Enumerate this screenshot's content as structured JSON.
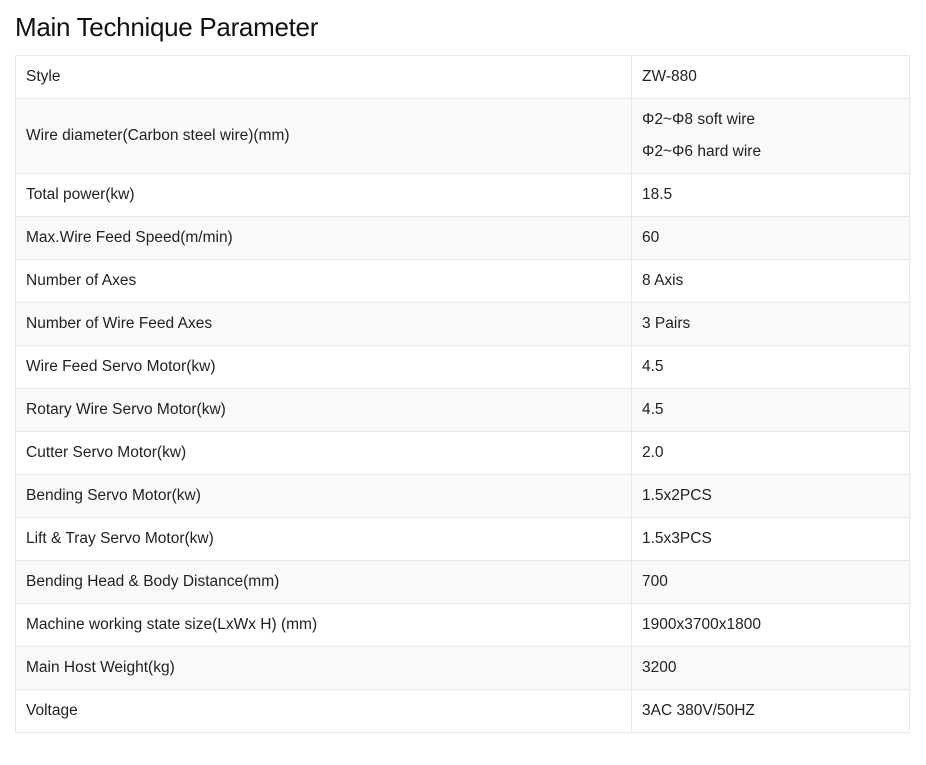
{
  "title": "Main Technique Parameter",
  "rows": [
    {
      "param": "Style",
      "value": [
        "ZW-880"
      ]
    },
    {
      "param": "Wire diameter(Carbon steel wire)(mm)",
      "value": [
        "Φ2~Φ8 soft wire",
        "Φ2~Φ6 hard wire"
      ]
    },
    {
      "param": "Total power(kw)",
      "value": [
        "18.5"
      ]
    },
    {
      "param": "Max.Wire Feed Speed(m/min)",
      "value": [
        "60"
      ]
    },
    {
      "param": "Number of Axes",
      "value": [
        "8 Axis"
      ]
    },
    {
      "param": "Number of Wire Feed Axes",
      "value": [
        "3 Pairs"
      ]
    },
    {
      "param": "Wire Feed Servo Motor(kw)",
      "value": [
        "4.5"
      ]
    },
    {
      "param": "Rotary Wire Servo Motor(kw)",
      "value": [
        "4.5"
      ]
    },
    {
      "param": "Cutter Servo Motor(kw)",
      "value": [
        "2.0"
      ]
    },
    {
      "param": "Bending Servo Motor(kw)",
      "value": [
        "1.5x2PCS"
      ]
    },
    {
      "param": "Lift & Tray Servo Motor(kw)",
      "value": [
        "1.5x3PCS"
      ]
    },
    {
      "param": "Bending Head & Body Distance(mm)",
      "value": [
        "700"
      ]
    },
    {
      "param": "Machine working state size(LxWx H) (mm)",
      "value": [
        "1900x3700x1800"
      ]
    },
    {
      "param": "Main Host Weight(kg)",
      "value": [
        "3200"
      ]
    },
    {
      "param": "Voltage",
      "value": [
        "3AC 380V/50HZ"
      ]
    }
  ]
}
